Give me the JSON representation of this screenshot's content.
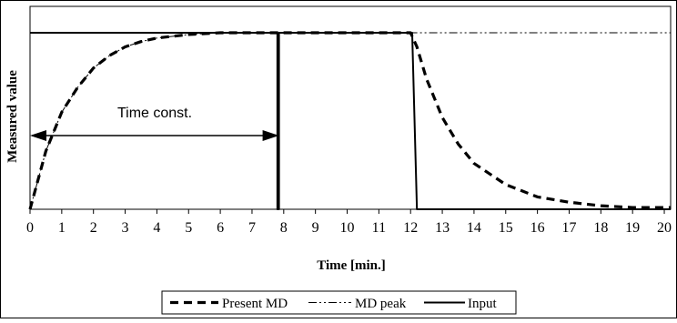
{
  "chart_data": {
    "type": "line",
    "title": "",
    "xlabel": "Time [min.]",
    "ylabel": "Measured value",
    "xlim": [
      0,
      20.2
    ],
    "ylim": [
      0,
      1.0
    ],
    "x_ticks": [
      "0",
      "1",
      "2",
      "3",
      "4",
      "5",
      "6",
      "7",
      "8",
      "9",
      "10",
      "11",
      "12",
      "13",
      "14",
      "15",
      "16",
      "17",
      "18",
      "19",
      "20"
    ],
    "grid": false,
    "legend_position": "bottom-center",
    "annotation": {
      "text": "Time const.",
      "arrow_x_start": 0,
      "arrow_x_end": 7.85,
      "arrow_y": 0.44
    },
    "series": [
      {
        "name": "Present MD",
        "style": "dashed",
        "x": [
          0,
          0.5,
          1,
          1.5,
          2,
          2.5,
          3,
          3.5,
          4,
          5,
          6,
          7,
          8,
          9,
          10,
          11,
          12.0,
          12.2,
          12.5,
          13,
          13.5,
          14,
          15,
          16,
          17,
          18,
          19,
          20,
          20.2
        ],
        "y": [
          0,
          0.33,
          0.55,
          0.69,
          0.8,
          0.87,
          0.92,
          0.95,
          0.97,
          0.99,
          1.0,
          1.0,
          1.0,
          1.0,
          1.0,
          1.0,
          1.0,
          0.92,
          0.74,
          0.52,
          0.37,
          0.26,
          0.14,
          0.07,
          0.04,
          0.02,
          0.01,
          0.01,
          0.01
        ]
      },
      {
        "name": "MD peak",
        "style": "dash-dot-dot",
        "x": [
          0,
          0.5,
          1,
          1.5,
          2,
          2.5,
          3,
          3.5,
          4,
          5,
          6,
          7,
          8,
          9,
          10,
          11,
          12,
          13,
          14,
          15,
          16,
          17,
          18,
          19,
          20,
          20.2
        ],
        "y": [
          0,
          0.33,
          0.55,
          0.69,
          0.8,
          0.87,
          0.92,
          0.95,
          0.97,
          0.99,
          1.0,
          1.0,
          1.0,
          1.0,
          1.0,
          1.0,
          1.0,
          1.0,
          1.0,
          1.0,
          1.0,
          1.0,
          1.0,
          1.0,
          1.0,
          1.0
        ]
      },
      {
        "name": "Input",
        "style": "solid",
        "x": [
          0,
          7.8,
          7.8,
          7.85,
          7.85,
          12.05,
          12.2,
          20.2
        ],
        "y": [
          1.0,
          1.0,
          0.0,
          0.0,
          1.0,
          1.0,
          0.0,
          0.0
        ]
      }
    ],
    "colors": {
      "line": "#000000",
      "frame": "#000000",
      "background": "#ffffff"
    }
  }
}
